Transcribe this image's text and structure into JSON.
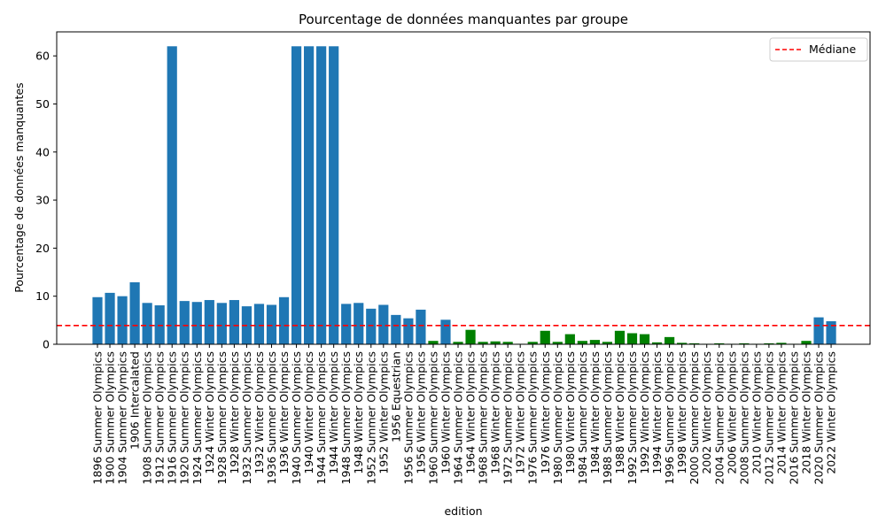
{
  "chart_data": {
    "type": "bar",
    "title": "Pourcentage de données manquantes par groupe",
    "xlabel": "edition",
    "ylabel": "Pourcentage de données manquantes",
    "ylim": [
      0,
      65
    ],
    "yticks": [
      0,
      10,
      20,
      30,
      40,
      50,
      60
    ],
    "median": 3.9,
    "legend": {
      "label": "Médiane",
      "placement": "top-right",
      "style": "dashed"
    },
    "colors": {
      "above_median": "#1f77b4",
      "below_median": "#008000",
      "median_line": "#ff0000"
    },
    "categories": [
      "1896 Summer Olympics",
      "1900 Summer Olympics",
      "1904 Summer Olympics",
      "1906 Intercalated",
      "1908 Summer Olympics",
      "1912 Summer Olympics",
      "1916 Summer Olympics",
      "1920 Summer Olympics",
      "1924 Summer Olympics",
      "1924 Winter Olympics",
      "1928 Summer Olympics",
      "1928 Winter Olympics",
      "1932 Summer Olympics",
      "1932 Winter Olympics",
      "1936 Summer Olympics",
      "1936 Winter Olympics",
      "1940 Summer Olympics",
      "1940 Winter Olympics",
      "1944 Summer Olympics",
      "1944 Winter Olympics",
      "1948 Summer Olympics",
      "1948 Winter Olympics",
      "1952 Summer Olympics",
      "1952 Winter Olympics",
      "1956 Equestrian",
      "1956 Summer Olympics",
      "1956 Winter Olympics",
      "1960 Summer Olympics",
      "1960 Winter Olympics",
      "1964 Summer Olympics",
      "1964 Winter Olympics",
      "1968 Summer Olympics",
      "1968 Winter Olympics",
      "1972 Summer Olympics",
      "1972 Winter Olympics",
      "1976 Summer Olympics",
      "1976 Winter Olympics",
      "1980 Summer Olympics",
      "1980 Winter Olympics",
      "1984 Summer Olympics",
      "1984 Winter Olympics",
      "1988 Summer Olympics",
      "1988 Winter Olympics",
      "1992 Summer Olympics",
      "1992 Winter Olympics",
      "1994 Winter Olympics",
      "1996 Summer Olympics",
      "1998 Winter Olympics",
      "2000 Summer Olympics",
      "2002 Winter Olympics",
      "2004 Summer Olympics",
      "2006 Winter Olympics",
      "2008 Summer Olympics",
      "2010 Winter Olympics",
      "2012 Summer Olympics",
      "2014 Winter Olympics",
      "2016 Summer Olympics",
      "2018 Winter Olympics",
      "2020 Summer Olympics",
      "2022 Winter Olympics"
    ],
    "values": [
      9.8,
      10.7,
      10.0,
      12.9,
      8.6,
      8.1,
      62.0,
      9.0,
      8.8,
      9.2,
      8.6,
      9.2,
      7.9,
      8.4,
      8.2,
      9.8,
      62.0,
      62.0,
      62.0,
      62.0,
      8.4,
      8.6,
      7.4,
      8.2,
      6.1,
      5.4,
      7.2,
      0.7,
      5.1,
      0.5,
      3.0,
      0.5,
      0.6,
      0.5,
      0.1,
      0.5,
      2.8,
      0.5,
      2.1,
      0.7,
      0.9,
      0.5,
      2.8,
      2.3,
      2.1,
      0.4,
      1.5,
      0.3,
      0.2,
      0.1,
      0.2,
      0.1,
      0.2,
      0.1,
      0.2,
      0.3,
      0.1,
      0.7,
      5.6,
      4.8
    ]
  }
}
